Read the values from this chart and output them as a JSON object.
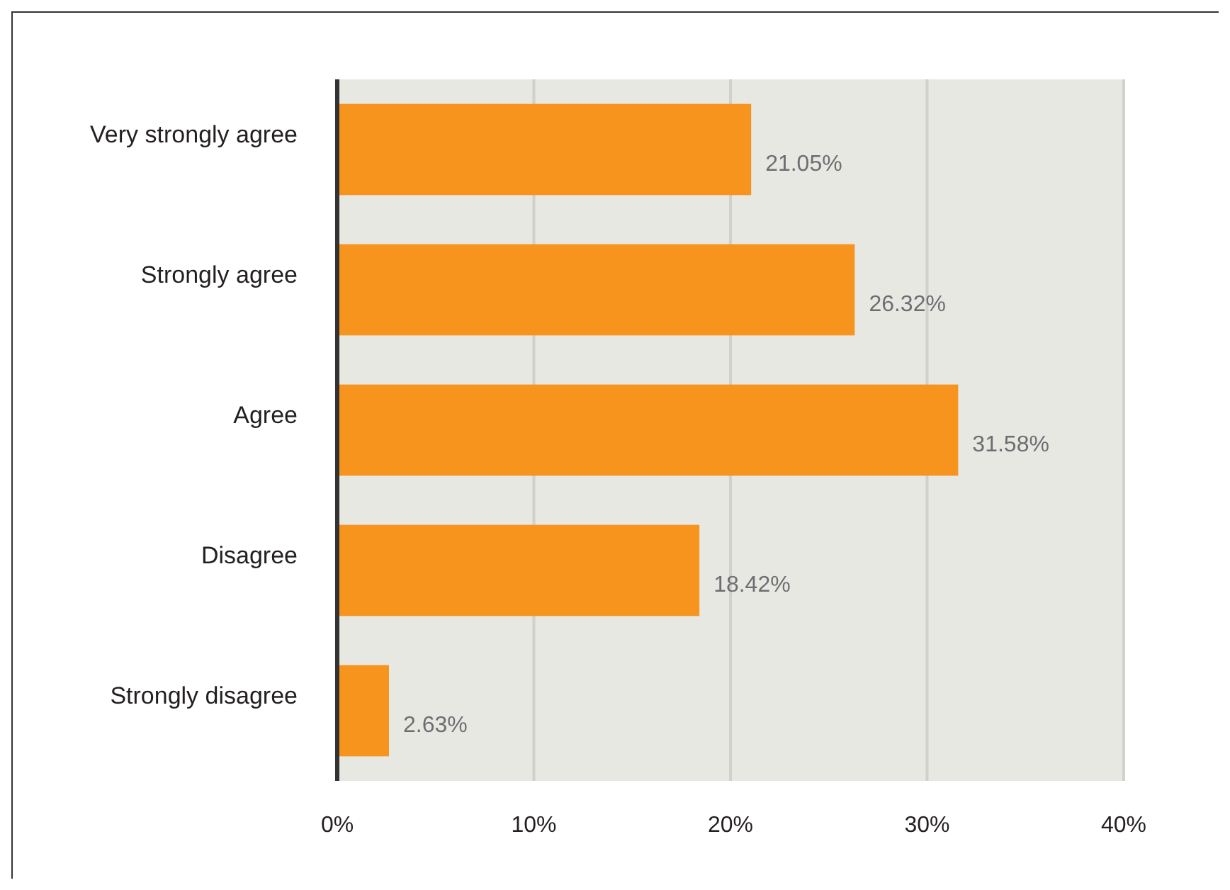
{
  "chart_data": {
    "type": "bar",
    "orientation": "horizontal",
    "categories": [
      "Very strongly agree",
      "Strongly agree",
      "Agree",
      "Disagree",
      "Strongly disagree"
    ],
    "values": [
      21.05,
      26.32,
      31.58,
      18.42,
      2.63
    ],
    "value_labels": [
      "21.05%",
      "26.32%",
      "31.58%",
      "18.42%",
      "2.63%"
    ],
    "color": "#f7941d",
    "xlim": [
      0,
      40
    ],
    "xticks": [
      {
        "value": 0,
        "label": "0%"
      },
      {
        "value": 10,
        "label": "10%"
      },
      {
        "value": 20,
        "label": "20%"
      },
      {
        "value": 30,
        "label": "30%"
      },
      {
        "value": 40,
        "label": "40%"
      }
    ],
    "grid": "x"
  }
}
